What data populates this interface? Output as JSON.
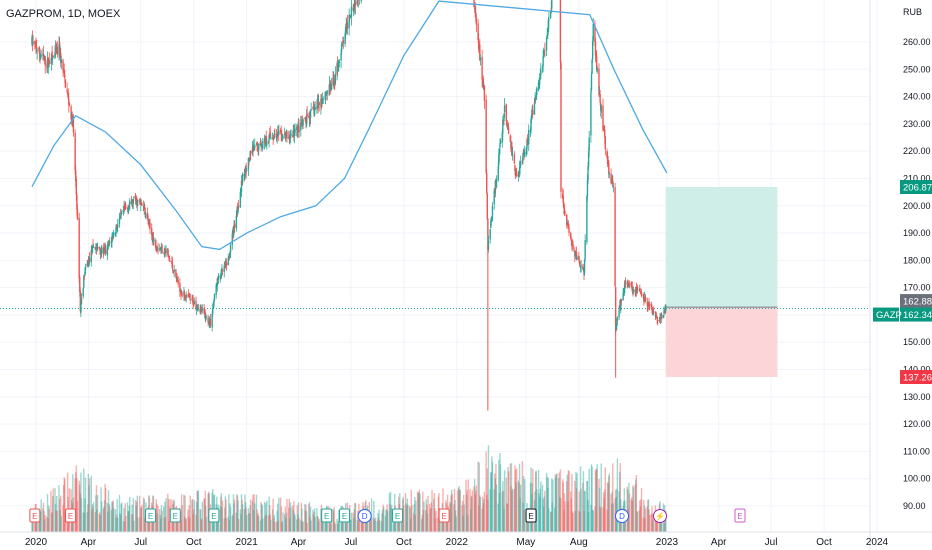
{
  "header": {
    "title": "GAZPROM, 1D, MOEX"
  },
  "colors": {
    "up": "#26a69a",
    "down": "#ef5350",
    "ma": "#4fa9e3",
    "profit_zone": "#cfeee8",
    "loss_zone": "#fbd5d8",
    "target_tag": "#089981",
    "stop_tag": "#f23645",
    "entry_tag": "#6b6f7a",
    "price_line": "#26a69a"
  },
  "chart_data": {
    "type": "candlestick",
    "symbol": "GAZP",
    "currency": "RUB",
    "y_ticks": [
      90,
      100,
      110,
      120,
      130,
      140,
      150,
      160,
      170,
      180,
      190,
      200,
      210,
      220,
      230,
      240,
      250,
      260
    ],
    "y_tick_labels": [
      "90.00",
      "100.00",
      "110.00",
      "120.00",
      "130.00",
      "140.00",
      "150.00",
      "160.00",
      "170.00",
      "180.00",
      "190.00",
      "200.00",
      "210.00",
      "220.00",
      "230.00",
      "240.00",
      "250.00",
      "260.00"
    ],
    "x_ticks": [
      "2020-01-01",
      "2020-04-01",
      "2020-07-01",
      "2020-10-01",
      "2021-01-01",
      "2021-04-01",
      "2021-07-01",
      "2021-10-01",
      "2022-01-01",
      "2022-05-01",
      "2022-08-01",
      "2023-01-01",
      "2023-04-01",
      "2023-07-01",
      "2023-10-01",
      "2024-01-01"
    ],
    "x_tick_labels": [
      "2020",
      "Apr",
      "Jul",
      "Oct",
      "2021",
      "Apr",
      "Jul",
      "Oct",
      "2022",
      "May",
      "Aug",
      "2023",
      "Apr",
      "Jul",
      "Oct",
      "2024"
    ],
    "price_path": [
      [
        "2019-12-25",
        260
      ],
      [
        "2020-01-20",
        252
      ],
      [
        "2020-02-10",
        257
      ],
      [
        "2020-02-20",
        246
      ],
      [
        "2020-03-05",
        230
      ],
      [
        "2020-03-12",
        200
      ],
      [
        "2020-03-18",
        162
      ],
      [
        "2020-03-25",
        175
      ],
      [
        "2020-04-10",
        185
      ],
      [
        "2020-05-01",
        183
      ],
      [
        "2020-06-01",
        198
      ],
      [
        "2020-06-20",
        202
      ],
      [
        "2020-07-05",
        200
      ],
      [
        "2020-07-25",
        186
      ],
      [
        "2020-08-15",
        183
      ],
      [
        "2020-09-10",
        168
      ],
      [
        "2020-10-10",
        163
      ],
      [
        "2020-10-30",
        157
      ],
      [
        "2020-11-10",
        172
      ],
      [
        "2020-11-30",
        180
      ],
      [
        "2020-12-25",
        210
      ],
      [
        "2021-01-10",
        220
      ],
      [
        "2021-02-15",
        226
      ],
      [
        "2021-03-15",
        225
      ],
      [
        "2021-04-10",
        230
      ],
      [
        "2021-05-01",
        236
      ],
      [
        "2021-06-01",
        245
      ],
      [
        "2021-07-01",
        272
      ],
      [
        "2021-08-15",
        290
      ],
      [
        "2021-10-01",
        330
      ],
      [
        "2021-11-15",
        335
      ],
      [
        "2021-12-15",
        310
      ],
      [
        "2022-01-20",
        295
      ],
      [
        "2022-02-18",
        240
      ],
      [
        "2022-02-24",
        185
      ],
      [
        "2022-03-25",
        235
      ],
      [
        "2022-04-15",
        210
      ],
      [
        "2022-05-05",
        225
      ],
      [
        "2022-06-01",
        255
      ],
      [
        "2022-06-29",
        297
      ],
      [
        "2022-07-01",
        205
      ],
      [
        "2022-07-20",
        185
      ],
      [
        "2022-08-10",
        175
      ],
      [
        "2022-08-26",
        265
      ],
      [
        "2022-09-05",
        242
      ],
      [
        "2022-09-20",
        215
      ],
      [
        "2022-10-01",
        205
      ],
      [
        "2022-10-04",
        155
      ],
      [
        "2022-10-20",
        172
      ],
      [
        "2022-11-15",
        168
      ],
      [
        "2022-12-05",
        162
      ],
      [
        "2022-12-20",
        158
      ],
      [
        "2022-12-30",
        162.34
      ]
    ],
    "wick_extremes": [
      [
        "2022-02-24",
        125
      ],
      [
        "2022-10-04",
        137
      ]
    ],
    "moving_average": [
      [
        "2019-12-25",
        207
      ],
      [
        "2020-02-01",
        222
      ],
      [
        "2020-03-10",
        233
      ],
      [
        "2020-05-01",
        227
      ],
      [
        "2020-07-01",
        215
      ],
      [
        "2020-09-01",
        198
      ],
      [
        "2020-10-15",
        185
      ],
      [
        "2020-11-15",
        184
      ],
      [
        "2021-01-01",
        190
      ],
      [
        "2021-03-01",
        196
      ],
      [
        "2021-05-01",
        200
      ],
      [
        "2021-06-20",
        210
      ],
      [
        "2021-08-01",
        228
      ],
      [
        "2021-10-01",
        255
      ],
      [
        "2021-12-01",
        275
      ],
      [
        "2022-08-20",
        270
      ],
      [
        "2022-10-01",
        250
      ],
      [
        "2022-11-20",
        228
      ],
      [
        "2023-01-01",
        212
      ]
    ],
    "volume_profile": [
      [
        "2019-12-25",
        0.3
      ],
      [
        "2020-03-15",
        0.8
      ],
      [
        "2020-06-01",
        0.4
      ],
      [
        "2020-11-01",
        0.5
      ],
      [
        "2021-03-01",
        0.4
      ],
      [
        "2021-06-01",
        0.3
      ],
      [
        "2021-10-01",
        0.5
      ],
      [
        "2022-01-01",
        0.5
      ],
      [
        "2022-02-24",
        1.0
      ],
      [
        "2022-06-01",
        0.7
      ],
      [
        "2022-09-20",
        0.8
      ],
      [
        "2022-10-04",
        0.9
      ],
      [
        "2022-12-30",
        0.3
      ]
    ],
    "position_tool": {
      "start": "2022-12-30",
      "end": "2023-07-12",
      "entry": 162.88,
      "target": 206.87,
      "stop": 137.26
    },
    "last_price": 162.34,
    "price_tags": [
      {
        "value": 206.87,
        "label": "206.87",
        "kind": "target"
      },
      {
        "value": 162.88,
        "label": "162.88",
        "kind": "entry"
      },
      {
        "value": 162.34,
        "label": "162.34",
        "kind": "last"
      },
      {
        "value": 137.26,
        "label": "137.26",
        "kind": "stop"
      }
    ],
    "events": [
      {
        "date": "2019-12-30",
        "letter": "E",
        "kind": "earnings-down"
      },
      {
        "date": "2020-03-01",
        "letter": "E",
        "kind": "earnings-down"
      },
      {
        "date": "2020-07-18",
        "letter": "E",
        "kind": "earnings-up"
      },
      {
        "date": "2020-08-30",
        "letter": "E",
        "kind": "earnings-up"
      },
      {
        "date": "2020-11-05",
        "letter": "E",
        "kind": "earnings-up"
      },
      {
        "date": "2021-05-20",
        "letter": "E",
        "kind": "earnings-up"
      },
      {
        "date": "2021-06-20",
        "letter": "E",
        "kind": "earnings-up"
      },
      {
        "date": "2021-07-25",
        "letter": "D",
        "kind": "dividend"
      },
      {
        "date": "2021-09-20",
        "letter": "E",
        "kind": "earnings-up"
      },
      {
        "date": "2021-12-10",
        "letter": "E",
        "kind": "earnings-down"
      },
      {
        "date": "2022-05-10",
        "letter": "E",
        "kind": "earnings-neutral"
      },
      {
        "date": "2022-10-15",
        "letter": "D",
        "kind": "dividend"
      },
      {
        "date": "2022-12-20",
        "letter": "⚡",
        "kind": "split"
      },
      {
        "date": "2023-05-08",
        "letter": "E",
        "kind": "earnings-future"
      }
    ]
  },
  "axis": {
    "currency_label": "RUB",
    "symbol_tag": "GAZP"
  }
}
